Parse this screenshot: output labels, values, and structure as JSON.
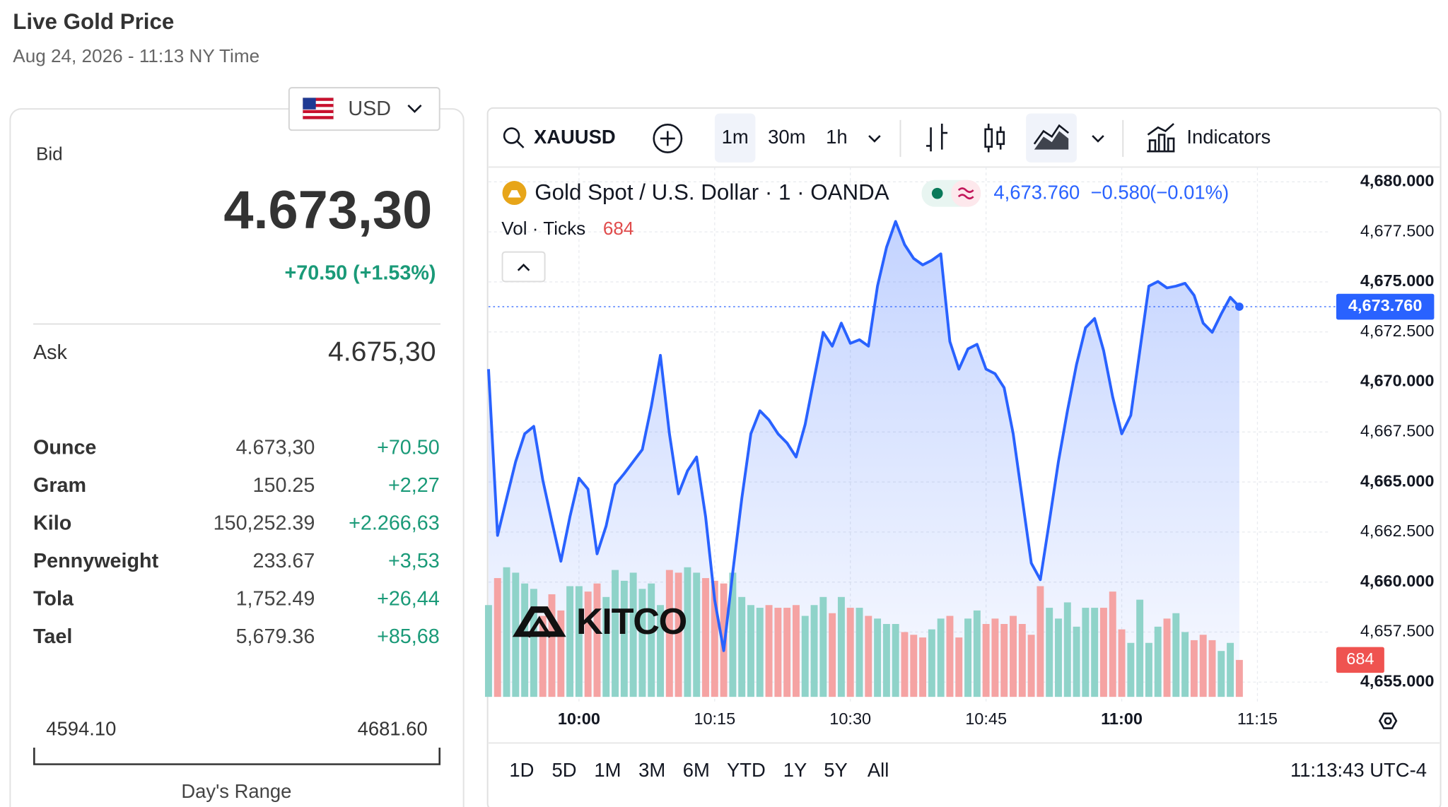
{
  "header": {
    "title": "Live Gold Price",
    "subtitle": "Aug 24, 2026 - 11:13 NY Time"
  },
  "currency": "USD",
  "quote": {
    "bid_label": "Bid",
    "bid": "4.673,30",
    "change": "+70.50 (+1.53%)",
    "ask_label": "Ask",
    "ask": "4.675,30"
  },
  "table": {
    "rows": [
      [
        "Ounce",
        "4.673,30",
        "+70.50"
      ],
      [
        "Gram",
        "150.25",
        "+2,27"
      ],
      [
        "Kilo",
        "150,252.39",
        "+2.266,63"
      ],
      [
        "Pennyweight",
        "233.67",
        "+3,53"
      ],
      [
        "Tola",
        "1,752.49",
        "+26,44"
      ],
      [
        "Tael",
        "5,679.36",
        "+85,68"
      ]
    ]
  },
  "range": {
    "low": "4594.10",
    "high": "4681.60",
    "label": "Day's Range"
  },
  "toolbar": {
    "symbol": "XAUUSD",
    "intervals": [
      "1m",
      "30m",
      "1h"
    ],
    "indicators": "Indicators"
  },
  "logo": "KITCO",
  "footer": {
    "ranges": [
      "1D",
      "5D",
      "1M",
      "3M",
      "6M",
      "YTD",
      "1Y",
      "5Y",
      "All"
    ],
    "clock": "11:13:43 UTC-4"
  },
  "chart_data": {
    "type": "line",
    "x": [
      "09:50",
      "09:51",
      "09:52",
      "09:53",
      "09:54",
      "09:55",
      "09:56",
      "09:57",
      "09:58",
      "09:59",
      "10:00",
      "10:01",
      "10:02",
      "10:03",
      "10:04",
      "10:05",
      "10:06",
      "10:07",
      "10:08",
      "10:09",
      "10:10",
      "10:11",
      "10:12",
      "10:13",
      "10:14",
      "10:15",
      "10:16",
      "10:17",
      "10:18",
      "10:19",
      "10:20",
      "10:21",
      "10:22",
      "10:23",
      "10:24",
      "10:25",
      "10:26",
      "10:27",
      "10:28",
      "10:29",
      "10:30",
      "10:31",
      "10:32",
      "10:33",
      "10:34",
      "10:35",
      "10:36",
      "10:37",
      "10:38",
      "10:39",
      "10:40",
      "10:41",
      "10:42",
      "10:43",
      "10:44",
      "10:45",
      "10:46",
      "10:47",
      "10:48",
      "10:49",
      "10:50",
      "10:51",
      "10:52",
      "10:53",
      "10:54",
      "10:55",
      "10:56",
      "10:57",
      "10:58",
      "10:59",
      "11:00",
      "11:01",
      "11:02",
      "11:03",
      "11:04",
      "11:05",
      "11:06",
      "11:07",
      "11:08",
      "11:09",
      "11:10",
      "11:11",
      "11:12",
      "11:13"
    ],
    "series": [
      {
        "name": "Gold Spot / U.S. Dollar · 1 · OANDA",
        "color": "#2962ff",
        "values": [
          4670.64,
          4662.33,
          4664.18,
          4666.02,
          4667.41,
          4667.78,
          4665.1,
          4663.03,
          4661.04,
          4663.26,
          4665.19,
          4664.64,
          4661.41,
          4662.8,
          4664.87,
          4665.42,
          4666.02,
          4666.62,
          4668.79,
          4671.33,
          4667.41,
          4664.41,
          4665.56,
          4666.25,
          4663.26,
          4659.11,
          4656.57,
          4660.49,
          4664.18,
          4667.41,
          4668.56,
          4668.1,
          4667.41,
          4666.95,
          4666.25,
          4667.87,
          4670.18,
          4672.48,
          4671.79,
          4672.94,
          4671.93,
          4672.11,
          4671.79,
          4674.79,
          4676.73,
          4678.02,
          4676.86,
          4676.17,
          4675.85,
          4676.08,
          4676.4,
          4672.02,
          4670.64,
          4671.65,
          4671.88,
          4670.64,
          4670.41,
          4669.71,
          4667.41,
          4664.18,
          4660.95,
          4660.12,
          4663.03,
          4666.02,
          4668.56,
          4670.87,
          4672.71,
          4673.17,
          4671.56,
          4669.25,
          4667.41,
          4668.33,
          4671.56,
          4674.79,
          4675.02,
          4674.7,
          4674.79,
          4674.93,
          4674.33,
          4672.94,
          4672.48,
          4673.4,
          4674.23,
          4673.76
        ],
        "last_label": "4,673.760",
        "change_label": "−0.580",
        "change_percent_label": "(−0.01%)"
      }
    ],
    "volume": {
      "name": "Vol · Ticks",
      "up_color": "#8fd3c9",
      "down_color": "#f5a3a3",
      "values": [
        1700,
        2200,
        2400,
        2300,
        2100,
        2000,
        1500,
        1900,
        1600,
        2050,
        2050,
        1950,
        2100,
        1850,
        2350,
        2150,
        2300,
        2000,
        2100,
        1700,
        2350,
        2300,
        2400,
        2300,
        2200,
        2150,
        2100,
        2300,
        1850,
        1700,
        1650,
        1700,
        1650,
        1650,
        1700,
        1500,
        1700,
        1850,
        1550,
        1850,
        1650,
        1650,
        1500,
        1450,
        1350,
        1350,
        1200,
        1150,
        1100,
        1250,
        1450,
        1500,
        1100,
        1450,
        1600,
        1350,
        1450,
        1350,
        1500,
        1350,
        1150,
        2050,
        1650,
        1450,
        1750,
        1300,
        1650,
        1650,
        1650,
        1950,
        1250,
        1000,
        1800,
        1000,
        1300,
        1450,
        1550,
        1200,
        1050,
        1150,
        1050,
        850,
        1000,
        684
      ]
    },
    "xlim": [
      "09:50",
      "11:23"
    ],
    "xticks": [
      "10:00",
      "10:15",
      "10:30",
      "10:45",
      "11:00",
      "11:15"
    ],
    "ylim": [
      4655,
      4680
    ],
    "yticks": [
      {
        "value": 4655,
        "label": "4,655.000"
      },
      {
        "value": 4657.5,
        "label": "4,657.500"
      },
      {
        "value": 4660,
        "label": "4,660.000"
      },
      {
        "value": 4662.5,
        "label": "4,662.500"
      },
      {
        "value": 4665,
        "label": "4,665.000"
      },
      {
        "value": 4667.5,
        "label": "4,667.500"
      },
      {
        "value": 4670,
        "label": "4,670.000"
      },
      {
        "value": 4672.5,
        "label": "4,672.500"
      },
      {
        "value": 4675,
        "label": "4,675.000"
      },
      {
        "value": 4677.5,
        "label": "4,677.500"
      },
      {
        "value": 4680,
        "label": "4,680.000"
      }
    ],
    "grid": true
  }
}
